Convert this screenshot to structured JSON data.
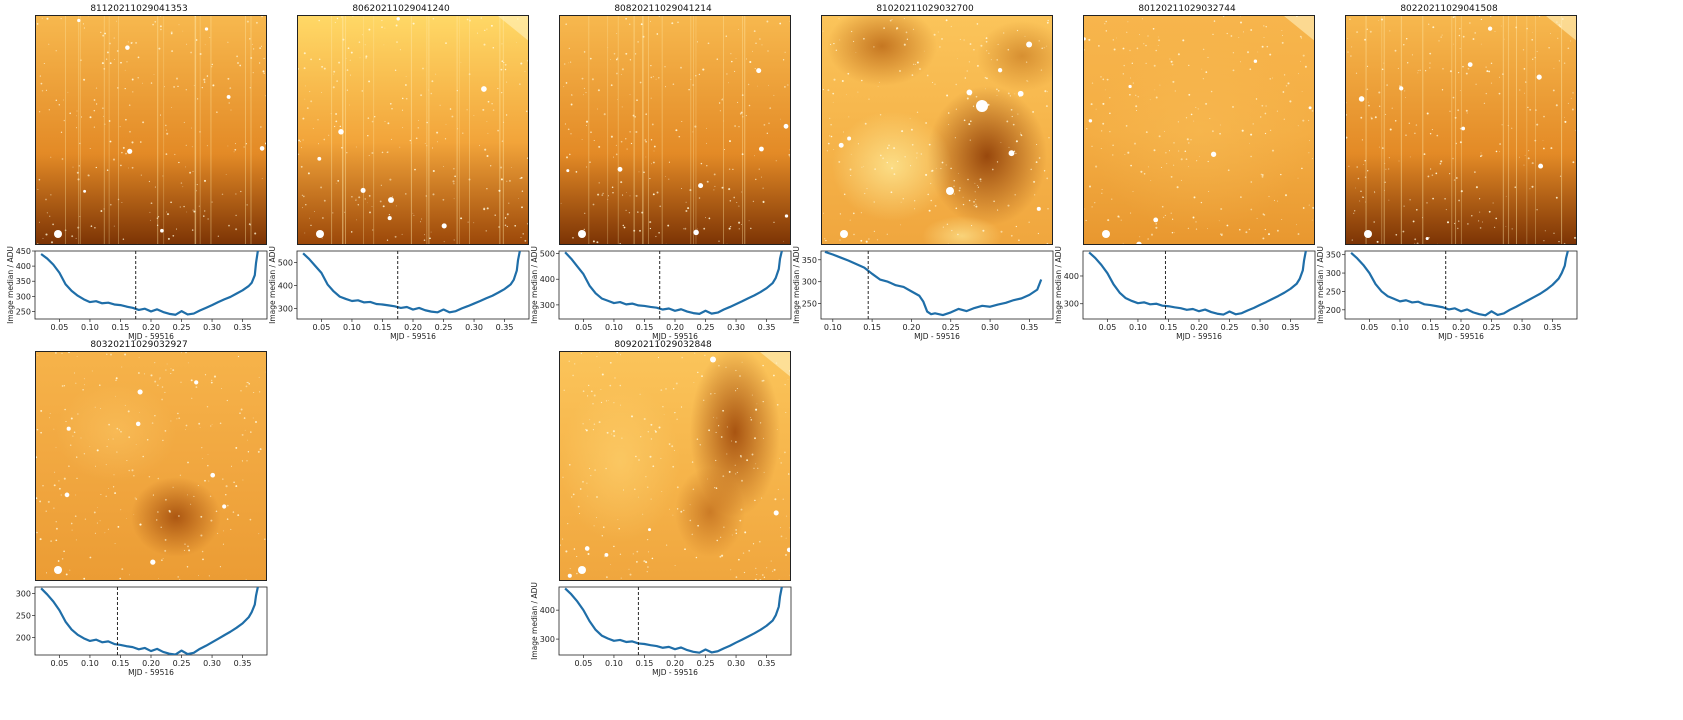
{
  "chart_data": [
    {
      "type": "line",
      "title": "81120211029041353",
      "image_style": "streaks-dark-bottom",
      "xlabel": "MJD - 59516",
      "ylabel": "Image median / ADU",
      "xlim": [
        0.01,
        0.39
      ],
      "ylim": [
        225,
        450
      ],
      "xticks": [
        0.05,
        0.1,
        0.15,
        0.2,
        0.25,
        0.3,
        0.35
      ],
      "yticks": [
        250,
        300,
        350,
        400,
        450
      ],
      "marker_x": 0.175,
      "x": [
        0.02,
        0.03,
        0.04,
        0.05,
        0.06,
        0.07,
        0.08,
        0.09,
        0.1,
        0.11,
        0.12,
        0.13,
        0.14,
        0.15,
        0.16,
        0.17,
        0.18,
        0.19,
        0.2,
        0.21,
        0.22,
        0.23,
        0.24,
        0.25,
        0.26,
        0.27,
        0.28,
        0.29,
        0.3,
        0.31,
        0.32,
        0.33,
        0.34,
        0.35,
        0.36,
        0.365,
        0.37,
        0.372,
        0.375
      ],
      "y": [
        440,
        425,
        405,
        378,
        340,
        318,
        302,
        290,
        281,
        284,
        277,
        279,
        273,
        271,
        266,
        262,
        255,
        259,
        250,
        257,
        248,
        242,
        239,
        251,
        240,
        243,
        253,
        262,
        271,
        281,
        290,
        298,
        309,
        320,
        334,
        345,
        370,
        410,
        450
      ]
    },
    {
      "type": "line",
      "title": "80620211029041240",
      "image_style": "streaks-bright-top",
      "xlabel": "MJD - 59516",
      "ylabel": "Image median / ADU",
      "xlim": [
        0.01,
        0.39
      ],
      "ylim": [
        255,
        550
      ],
      "xticks": [
        0.05,
        0.1,
        0.15,
        0.2,
        0.25,
        0.3,
        0.35
      ],
      "yticks": [
        300,
        400,
        500
      ],
      "marker_x": 0.175,
      "x": [
        0.02,
        0.03,
        0.04,
        0.05,
        0.06,
        0.07,
        0.08,
        0.09,
        0.1,
        0.11,
        0.12,
        0.13,
        0.14,
        0.15,
        0.16,
        0.17,
        0.18,
        0.19,
        0.2,
        0.21,
        0.22,
        0.23,
        0.24,
        0.25,
        0.26,
        0.27,
        0.28,
        0.29,
        0.3,
        0.31,
        0.32,
        0.33,
        0.34,
        0.35,
        0.36,
        0.365,
        0.37,
        0.372,
        0.375
      ],
      "y": [
        540,
        515,
        485,
        455,
        405,
        375,
        352,
        342,
        333,
        336,
        327,
        329,
        320,
        318,
        314,
        310,
        303,
        307,
        296,
        303,
        293,
        287,
        284,
        296,
        284,
        289,
        301,
        311,
        322,
        333,
        345,
        356,
        370,
        385,
        405,
        425,
        465,
        510,
        550
      ]
    },
    {
      "type": "line",
      "title": "80820211029041214",
      "image_style": "streaks-dark-bottom",
      "xlabel": "MJD - 59516",
      "ylabel": "Image median / ADU",
      "xlim": [
        0.01,
        0.39
      ],
      "ylim": [
        245,
        510
      ],
      "xticks": [
        0.05,
        0.1,
        0.15,
        0.2,
        0.25,
        0.3,
        0.35
      ],
      "yticks": [
        300,
        400,
        500
      ],
      "marker_x": 0.175,
      "x": [
        0.02,
        0.03,
        0.04,
        0.05,
        0.06,
        0.07,
        0.08,
        0.09,
        0.1,
        0.11,
        0.12,
        0.13,
        0.14,
        0.15,
        0.16,
        0.17,
        0.18,
        0.19,
        0.2,
        0.21,
        0.22,
        0.23,
        0.24,
        0.25,
        0.26,
        0.27,
        0.28,
        0.29,
        0.3,
        0.31,
        0.32,
        0.33,
        0.34,
        0.35,
        0.36,
        0.365,
        0.37,
        0.372,
        0.375
      ],
      "y": [
        505,
        480,
        450,
        420,
        375,
        345,
        325,
        316,
        307,
        311,
        302,
        305,
        298,
        296,
        292,
        289,
        282,
        286,
        277,
        283,
        274,
        268,
        265,
        277,
        266,
        270,
        282,
        292,
        303,
        314,
        326,
        337,
        350,
        365,
        385,
        405,
        440,
        480,
        510
      ]
    },
    {
      "type": "line",
      "title": "81020211029032700",
      "image_style": "nebula-dark-patches",
      "xlabel": "MJD - 59516",
      "ylabel": "Image median / ADU",
      "xlim": [
        0.085,
        0.38
      ],
      "ylim": [
        215,
        370
      ],
      "xticks": [
        0.1,
        0.15,
        0.2,
        0.25,
        0.3,
        0.35
      ],
      "yticks": [
        250,
        300,
        350
      ],
      "marker_x": 0.145,
      "x": [
        0.09,
        0.1,
        0.11,
        0.12,
        0.13,
        0.14,
        0.15,
        0.16,
        0.17,
        0.18,
        0.19,
        0.2,
        0.21,
        0.215,
        0.22,
        0.225,
        0.23,
        0.24,
        0.25,
        0.26,
        0.27,
        0.28,
        0.29,
        0.3,
        0.31,
        0.32,
        0.33,
        0.34,
        0.35,
        0.36,
        0.365
      ],
      "y": [
        368,
        362,
        355,
        348,
        340,
        332,
        318,
        305,
        300,
        292,
        288,
        278,
        268,
        255,
        232,
        226,
        228,
        224,
        230,
        238,
        233,
        240,
        245,
        243,
        248,
        252,
        258,
        262,
        270,
        282,
        305
      ]
    },
    {
      "type": "line",
      "title": "80120211029032744",
      "image_style": "smooth-bright",
      "xlabel": "MJD - 59516",
      "ylabel": "Image median / ADU",
      "xlim": [
        0.01,
        0.39
      ],
      "ylim": [
        245,
        490
      ],
      "xticks": [
        0.05,
        0.1,
        0.15,
        0.2,
        0.25,
        0.3,
        0.35
      ],
      "yticks": [
        300,
        400
      ],
      "marker_x": 0.145,
      "x": [
        0.02,
        0.03,
        0.04,
        0.05,
        0.06,
        0.07,
        0.08,
        0.09,
        0.1,
        0.11,
        0.12,
        0.13,
        0.14,
        0.15,
        0.16,
        0.17,
        0.18,
        0.19,
        0.2,
        0.21,
        0.22,
        0.23,
        0.24,
        0.25,
        0.26,
        0.27,
        0.28,
        0.29,
        0.3,
        0.31,
        0.32,
        0.33,
        0.34,
        0.35,
        0.36,
        0.365,
        0.37,
        0.372,
        0.375
      ],
      "y": [
        485,
        465,
        440,
        410,
        370,
        340,
        320,
        310,
        302,
        305,
        298,
        300,
        293,
        291,
        287,
        284,
        278,
        281,
        273,
        279,
        270,
        264,
        261,
        272,
        262,
        266,
        276,
        285,
        296,
        306,
        317,
        328,
        340,
        354,
        372,
        390,
        420,
        455,
        490
      ]
    },
    {
      "type": "line",
      "title": "80220211029041508",
      "image_style": "streaks-dark-bottom",
      "xlabel": "MJD - 59516",
      "ylabel": "Image median / ADU",
      "xlim": [
        0.01,
        0.39
      ],
      "ylim": [
        175,
        360
      ],
      "xticks": [
        0.05,
        0.1,
        0.15,
        0.2,
        0.25,
        0.3,
        0.35
      ],
      "yticks": [
        200,
        250,
        300,
        350
      ],
      "marker_x": 0.175,
      "x": [
        0.02,
        0.03,
        0.04,
        0.05,
        0.06,
        0.07,
        0.08,
        0.09,
        0.1,
        0.11,
        0.12,
        0.13,
        0.14,
        0.15,
        0.16,
        0.17,
        0.18,
        0.19,
        0.2,
        0.21,
        0.22,
        0.23,
        0.24,
        0.25,
        0.26,
        0.27,
        0.28,
        0.29,
        0.3,
        0.31,
        0.32,
        0.33,
        0.34,
        0.35,
        0.36,
        0.365,
        0.37,
        0.372,
        0.375
      ],
      "y": [
        355,
        340,
        322,
        300,
        270,
        250,
        237,
        230,
        223,
        226,
        220,
        222,
        215,
        213,
        210,
        207,
        201,
        204,
        196,
        201,
        193,
        188,
        185,
        196,
        186,
        190,
        200,
        208,
        217,
        226,
        235,
        244,
        255,
        268,
        285,
        300,
        320,
        340,
        360
      ]
    },
    {
      "type": "line",
      "title": "80320211029032927",
      "image_style": "smooth-dark-center",
      "xlabel": "MJD - 59516",
      "ylabel": "",
      "xlim": [
        0.01,
        0.39
      ],
      "ylim": [
        160,
        315
      ],
      "xticks": [
        0.05,
        0.1,
        0.15,
        0.2,
        0.25,
        0.3,
        0.35
      ],
      "yticks": [
        200,
        250,
        300
      ],
      "marker_x": 0.145,
      "x": [
        0.02,
        0.03,
        0.04,
        0.05,
        0.06,
        0.07,
        0.08,
        0.09,
        0.1,
        0.11,
        0.12,
        0.13,
        0.14,
        0.15,
        0.16,
        0.17,
        0.18,
        0.19,
        0.2,
        0.21,
        0.22,
        0.23,
        0.24,
        0.25,
        0.26,
        0.27,
        0.28,
        0.29,
        0.3,
        0.31,
        0.32,
        0.33,
        0.34,
        0.35,
        0.36,
        0.365,
        0.37,
        0.372,
        0.375
      ],
      "y": [
        312,
        298,
        282,
        262,
        236,
        218,
        206,
        198,
        192,
        195,
        189,
        191,
        185,
        183,
        180,
        178,
        173,
        176,
        169,
        174,
        167,
        163,
        161,
        170,
        162,
        165,
        174,
        181,
        189,
        197,
        205,
        213,
        222,
        232,
        246,
        258,
        275,
        295,
        315
      ]
    },
    {
      "type": "line",
      "title": "80920211029032848",
      "image_style": "nebula-dark-right",
      "xlabel": "MJD - 59516",
      "ylabel": "Image median / ADU",
      "xlim": [
        0.01,
        0.39
      ],
      "ylim": [
        245,
        480
      ],
      "xticks": [
        0.05,
        0.1,
        0.15,
        0.2,
        0.25,
        0.3,
        0.35
      ],
      "yticks": [
        300,
        400
      ],
      "marker_x": 0.14,
      "x": [
        0.02,
        0.03,
        0.04,
        0.05,
        0.06,
        0.07,
        0.08,
        0.09,
        0.1,
        0.11,
        0.12,
        0.13,
        0.14,
        0.15,
        0.16,
        0.17,
        0.18,
        0.19,
        0.2,
        0.21,
        0.22,
        0.23,
        0.24,
        0.25,
        0.26,
        0.27,
        0.28,
        0.29,
        0.3,
        0.31,
        0.32,
        0.33,
        0.34,
        0.35,
        0.36,
        0.365,
        0.37,
        0.372,
        0.375
      ],
      "y": [
        475,
        455,
        430,
        400,
        362,
        332,
        312,
        302,
        294,
        297,
        290,
        292,
        285,
        283,
        279,
        276,
        270,
        273,
        265,
        271,
        262,
        256,
        253,
        264,
        254,
        258,
        268,
        277,
        288,
        298,
        309,
        320,
        332,
        346,
        364,
        382,
        412,
        447,
        480
      ]
    }
  ]
}
